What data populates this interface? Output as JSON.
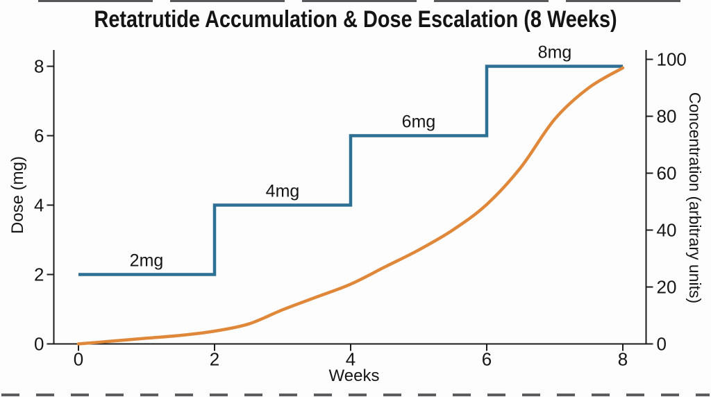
{
  "title": "Retatrutide Accumulation & Dose Escalation (8 Weeks)",
  "colors": {
    "axis": "#1c1c1c",
    "background": "#fdfdfd",
    "dose_line": "#2e6f94",
    "concentration_line": "#e0883a"
  },
  "chart_data": {
    "type": "line",
    "title": "Retatrutide Accumulation & Dose Escalation (8 Weeks)",
    "xlabel": "Weeks",
    "y_left_label": "Dose (mg)",
    "y_right_label": "Concentration (arbitrary units)",
    "x_ticks": [
      0,
      2,
      4,
      6,
      8
    ],
    "y_left_ticks": [
      0,
      2,
      4,
      6,
      8
    ],
    "y_right_ticks": [
      0,
      20,
      40,
      60,
      80,
      100
    ],
    "xlim": [
      0,
      8
    ],
    "y_left_lim": [
      0,
      8.5
    ],
    "y_right_lim": [
      0,
      103
    ],
    "grid": false,
    "legend_position": "none",
    "series": [
      {
        "name": "Dose (mg)",
        "type": "step",
        "axis": "left",
        "color": "#2e6f94",
        "x": [
          0,
          2,
          2,
          4,
          4,
          6,
          6,
          8
        ],
        "y": [
          2,
          2,
          4,
          4,
          6,
          6,
          8,
          8
        ]
      },
      {
        "name": "Concentration",
        "type": "smooth-line",
        "axis": "right",
        "color": "#e0883a",
        "x": [
          0,
          0.5,
          1,
          1.5,
          2,
          2.5,
          3,
          3.5,
          4,
          4.5,
          5,
          5.5,
          6,
          6.5,
          7,
          7.5,
          8
        ],
        "y": [
          0,
          1,
          2,
          3,
          4.5,
          7,
          12,
          16.5,
          21,
          27,
          33,
          40,
          49,
          62,
          79,
          90,
          97
        ]
      }
    ],
    "annotations": [
      {
        "label": "2mg",
        "x_week": 1,
        "dose": 2
      },
      {
        "label": "4mg",
        "x_week": 3,
        "dose": 4
      },
      {
        "label": "6mg",
        "x_week": 5,
        "dose": 6
      },
      {
        "label": "8mg",
        "x_week": 7,
        "dose": 8
      }
    ]
  }
}
